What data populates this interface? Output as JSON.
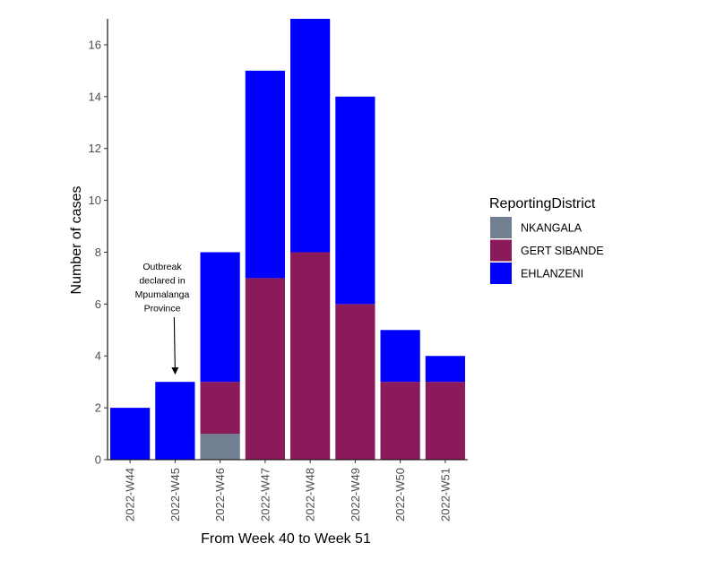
{
  "chart_data": {
    "type": "bar",
    "stacked": true,
    "xlabel": "From Week 40 to Week 51",
    "ylabel": "Number of cases",
    "ylim": [
      0,
      17
    ],
    "yticks": [
      0,
      2,
      4,
      6,
      8,
      10,
      12,
      14,
      16
    ],
    "categories": [
      "2022-W44",
      "2022-W45",
      "2022-W46",
      "2022-W47",
      "2022-W48",
      "2022-W49",
      "2022-W50",
      "2022-W51"
    ],
    "series": [
      {
        "name": "NKANGALA",
        "color": "#708090",
        "values": [
          0,
          0,
          1,
          0,
          0,
          0,
          0,
          0
        ]
      },
      {
        "name": "GERT SIBANDE",
        "color": "#8B1A5B",
        "values": [
          0,
          0,
          2,
          7,
          8,
          6,
          3,
          3
        ]
      },
      {
        "name": "EHLANZENI",
        "color": "#0000FF",
        "values": [
          2,
          3,
          5,
          8,
          9,
          8,
          2,
          1
        ]
      }
    ],
    "legend": {
      "title": "ReportingDistrict",
      "position": "right"
    },
    "annotation": {
      "lines": [
        "Outbreak",
        "declared in",
        "Mpumalanga",
        "Province"
      ],
      "target_category": "2022-W45"
    },
    "grid": false
  }
}
